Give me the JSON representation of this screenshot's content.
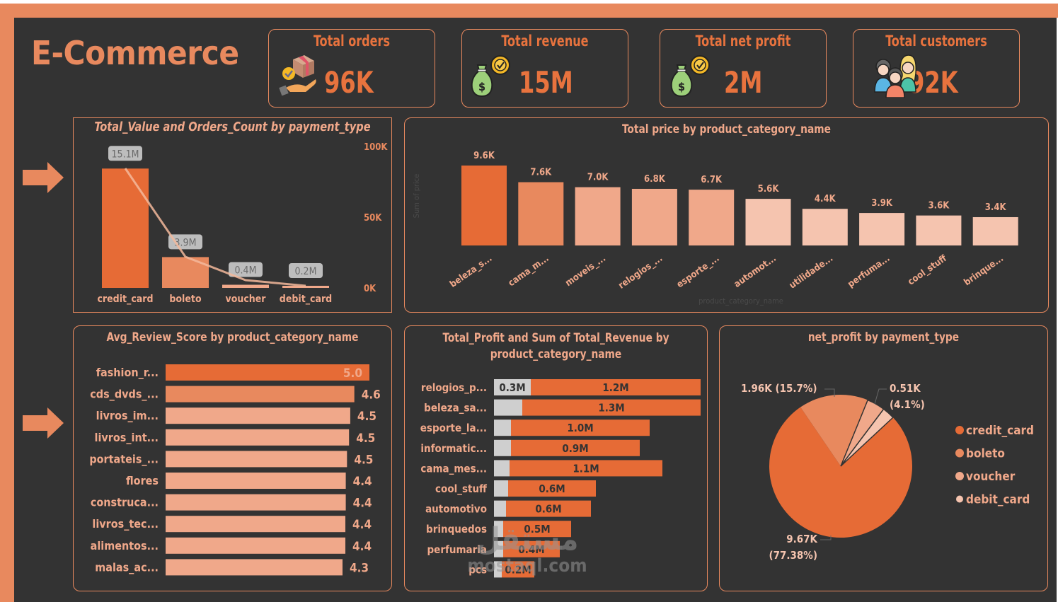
{
  "header": {
    "title": "E-Commerce"
  },
  "kpis": [
    {
      "label": "Total orders",
      "value": "96K",
      "icon": "package-hand-icon"
    },
    {
      "label": "Total revenue",
      "value": "15M",
      "icon": "money-bag-icon"
    },
    {
      "label": "Total net profit",
      "value": "2M",
      "icon": "money-bag-icon"
    },
    {
      "label": "Total customers",
      "value": "92K",
      "icon": "people-group-icon"
    }
  ],
  "colors": {
    "accent": "#E8895E",
    "primary_bar": "#E66B36",
    "mid_bar": "#E8895E",
    "light_bar": "#F0A88A",
    "lighter_bar": "#F5C4AF",
    "profit_grey": "#CFCFCF",
    "background": "#333333"
  },
  "chart_data": [
    {
      "id": "payment",
      "type": "bar+line",
      "title": "Total_Value and Orders_Count by payment_type",
      "categories": [
        "credit_card",
        "boleto",
        "voucher",
        "debit_card"
      ],
      "series": [
        {
          "name": "Total_Value",
          "values": [
            15.1,
            3.9,
            0.4,
            0.2
          ],
          "unit": "M",
          "labels": [
            "15.1M",
            "3.9M",
            "0.4M",
            "0.2M"
          ]
        },
        {
          "name": "Orders_Count",
          "values": [
            84500,
            22000,
            5500,
            1500
          ],
          "axis": "right"
        }
      ],
      "y2_ticks": [
        "0K",
        "50K",
        "100K"
      ],
      "y2lim": [
        0,
        100000
      ],
      "ylim": [
        0,
        17.9
      ]
    },
    {
      "id": "price",
      "type": "bar",
      "title": "Total price by product_category_name",
      "xlabel": "product_category_name",
      "ylabel": "Sum of price",
      "categories": [
        "beleza_s...",
        "cama_m...",
        "moveis_...",
        "relogios_...",
        "esporte_...",
        "automot...",
        "utilidade...",
        "perfuma...",
        "cool_stuff",
        "brinque..."
      ],
      "values": [
        9.6,
        7.6,
        7.0,
        6.8,
        6.7,
        5.6,
        4.4,
        3.9,
        3.6,
        3.4
      ],
      "labels": [
        "9.6K",
        "7.6K",
        "7.0K",
        "6.8K",
        "6.7K",
        "5.6K",
        "4.4K",
        "3.9K",
        "3.6K",
        "3.4K"
      ],
      "unit": "K"
    },
    {
      "id": "review",
      "type": "bar",
      "orientation": "horizontal",
      "title": "Avg_Review_Score by product_category_name",
      "categories": [
        "fashion_r...",
        "cds_dvds_...",
        "livros_im...",
        "livros_int...",
        "portateis_...",
        "flores",
        "construca...",
        "livros_tec...",
        "alimentos...",
        "malas_ac..."
      ],
      "values": [
        5.0,
        4.63,
        4.53,
        4.5,
        4.45,
        4.42,
        4.42,
        4.41,
        4.41,
        4.34
      ],
      "labels": [
        "5.0",
        "4.6",
        "4.5",
        "4.5",
        "4.5",
        "4.4",
        "4.4",
        "4.4",
        "4.4",
        "4.3"
      ]
    },
    {
      "id": "profit_revenue",
      "type": "bar",
      "orientation": "horizontal",
      "stacked": true,
      "title": "Total_Profit and Sum of Total_Revenue by product_category_name",
      "categories": [
        "relogios_p...",
        "beleza_sa...",
        "esporte_la...",
        "informatic...",
        "cama_mes...",
        "cool_stuff",
        "automotivo",
        "brinquedos",
        "perfumaria",
        "pcs"
      ],
      "series": [
        {
          "name": "Total_Profit",
          "values": [
            0.26,
            0.2,
            0.12,
            0.12,
            0.11,
            0.1,
            0.085,
            0.065,
            0.065,
            0.055
          ],
          "labels": [
            "0.3M",
            "",
            "",
            "",
            "",
            "",
            "",
            "",
            "",
            ""
          ]
        },
        {
          "name": "Total_Revenue",
          "values": [
            1.2,
            1.26,
            0.98,
            0.91,
            1.08,
            0.62,
            0.6,
            0.48,
            0.4,
            0.23
          ],
          "labels": [
            "1.2M",
            "1.3M",
            "1.0M",
            "0.9M",
            "1.1M",
            "0.6M",
            "0.6M",
            "0.5M",
            "0.4M",
            "0.2M"
          ]
        }
      ],
      "unit": "M"
    },
    {
      "id": "netprofit",
      "type": "pie",
      "title": "net_profit by payment_type",
      "categories": [
        "credit_card",
        "boleto",
        "voucher",
        "debit_card"
      ],
      "values": [
        9.67,
        1.96,
        0.51,
        0.35
      ],
      "percents": [
        77.38,
        15.7,
        4.1,
        2.82
      ],
      "labels": [
        "9.67K",
        "1.96K (15.7%)",
        "0.51K",
        ""
      ],
      "label_pct": [
        "(77.38%)",
        "",
        "(4.1%)",
        ""
      ],
      "legend": "right"
    }
  ],
  "watermark": {
    "arabic": "مستقل",
    "latin": "mostaql.com"
  }
}
